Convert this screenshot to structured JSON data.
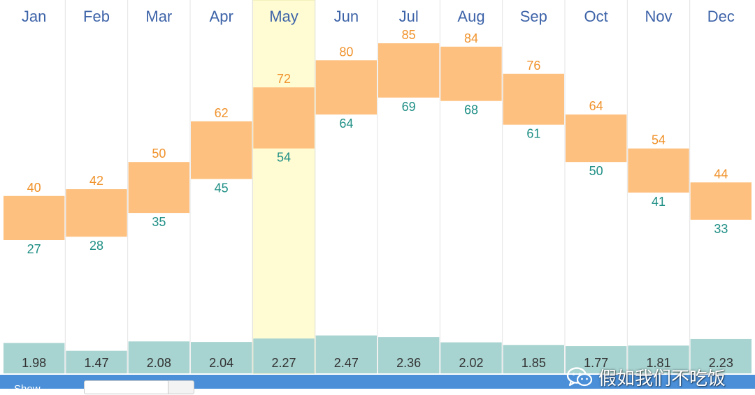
{
  "chart_data": {
    "type": "bar",
    "subtype": "floating-range-with-precipitation",
    "categories": [
      "Jan",
      "Feb",
      "Mar",
      "Apr",
      "May",
      "Jun",
      "Jul",
      "Aug",
      "Sep",
      "Oct",
      "Nov",
      "Dec"
    ],
    "series": [
      {
        "values": [
          40,
          42,
          50,
          62,
          72,
          80,
          85,
          84,
          76,
          64,
          54,
          44
        ]
      },
      {
        "values": [
          27,
          28,
          35,
          45,
          54,
          64,
          69,
          68,
          61,
          50,
          41,
          33
        ]
      },
      {
        "values": [
          1.98,
          1.47,
          2.08,
          2.04,
          2.27,
          2.47,
          2.36,
          2.02,
          1.85,
          1.77,
          1.81,
          2.23
        ]
      }
    ],
    "highlighted_category": "May",
    "ylim": [
      0,
      100
    ],
    "grid": false,
    "legend": "none"
  },
  "colors": {
    "range_fill": "#fdc07f",
    "high_label": "#f0922b",
    "low_label": "#1f8f85",
    "month_label": "#3d63a8",
    "precip_fill": "#a7d3d0",
    "highlight_column": "#fffcd3",
    "column_divider": "#e3e3e3",
    "toolbar_blue": "#4a8fd8"
  },
  "watermark": {
    "text": "假如我们不吃饭",
    "icon": "wechat-icon"
  }
}
